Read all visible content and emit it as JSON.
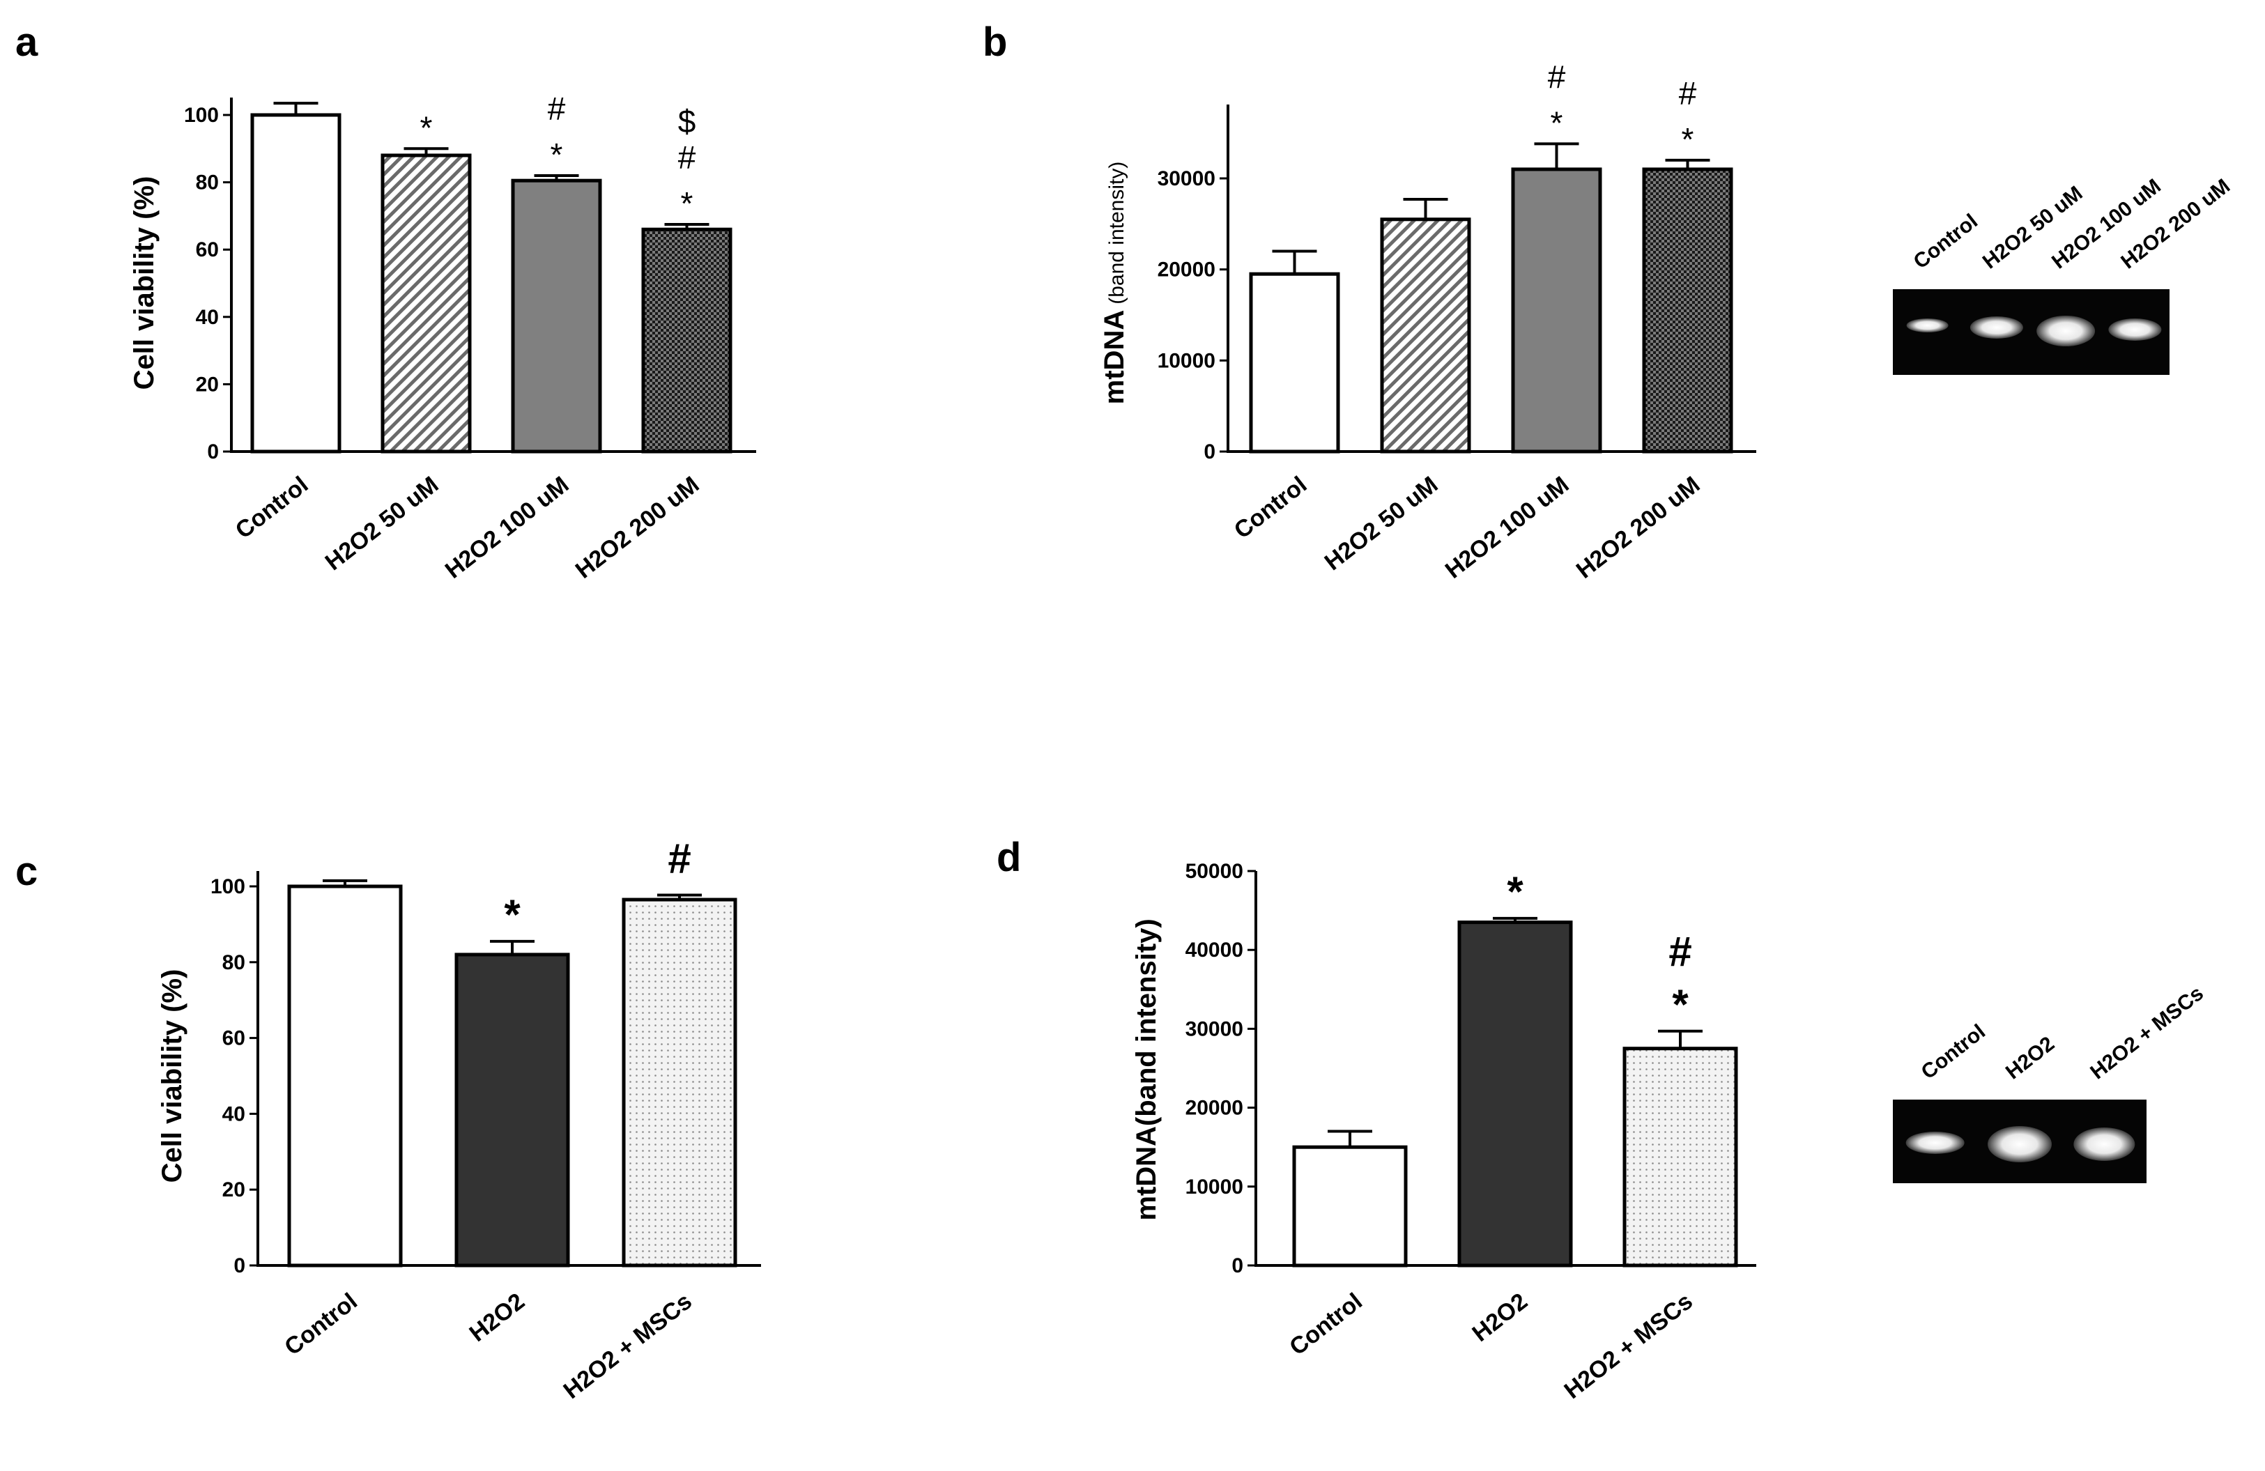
{
  "chart_data": [
    {
      "panel": "a",
      "type": "bar",
      "ylabel": "Cell viability (%)",
      "ylim": [
        0,
        100
      ],
      "yticks": [
        "0",
        "20",
        "40",
        "60",
        "80",
        "100"
      ],
      "categories": [
        "Control",
        "H2O2 50 uM",
        "H2O2 100 uM",
        "H2O2 200 uM"
      ],
      "values": [
        100,
        88,
        80.5,
        66
      ],
      "errors": [
        3.5,
        2,
        1.5,
        1.5
      ],
      "fills": [
        "white",
        "hatch",
        "gray",
        "checker"
      ],
      "annotations": [
        [],
        [
          "*"
        ],
        [
          "#",
          "*"
        ],
        [
          "$",
          "#",
          "*"
        ]
      ]
    },
    {
      "panel": "b",
      "type": "bar",
      "ylabel": "mtDNA",
      "ylabel_suffix": "(band intensity)",
      "ylim": [
        0,
        37500
      ],
      "yticks": [
        "0",
        "10000",
        "20000",
        "30000"
      ],
      "categories": [
        "Control",
        "H2O2 50 uM",
        "H2O2 100 uM",
        "H2O2 200 uM"
      ],
      "values": [
        19500,
        25500,
        31000,
        31000
      ],
      "errors": [
        2500,
        2200,
        2800,
        1000
      ],
      "fills": [
        "white",
        "hatch",
        "gray",
        "checker"
      ],
      "annotations": [
        [],
        [],
        [
          "#",
          "*"
        ],
        [
          "#",
          "*"
        ]
      ],
      "gel_lanes": [
        "Control",
        "H2O2 50 uM",
        "H2O2 100 uM",
        "H2O2 200 uM"
      ]
    },
    {
      "panel": "c",
      "type": "bar",
      "ylabel": "Cell viability (%)",
      "ylim": [
        0,
        100
      ],
      "yticks": [
        "0",
        "20",
        "40",
        "60",
        "80",
        "100"
      ],
      "categories": [
        "Control",
        "H2O2",
        "H2O2 + MSCs"
      ],
      "values": [
        100,
        82,
        96.5
      ],
      "errors": [
        1.5,
        3.5,
        1.2
      ],
      "fills": [
        "white",
        "dark",
        "dots"
      ],
      "annotations": [
        [],
        [
          "*"
        ],
        [
          "#"
        ]
      ]
    },
    {
      "panel": "d",
      "type": "bar",
      "ylabel": "mtDNA(band intensity)",
      "ylim": [
        0,
        50000
      ],
      "yticks": [
        "0",
        "10000",
        "20000",
        "30000",
        "40000",
        "50000"
      ],
      "categories": [
        "Control",
        "H2O2",
        "H2O2 + MSCs"
      ],
      "values": [
        15000,
        43500,
        27500
      ],
      "errors": [
        2000,
        500,
        2200
      ],
      "fills": [
        "white",
        "dark",
        "dots"
      ],
      "annotations": [
        [],
        [
          "*"
        ],
        [
          "#",
          "*"
        ]
      ],
      "gel_lanes": [
        "Control",
        "H2O2",
        "H2O2 + MSCs"
      ]
    }
  ]
}
